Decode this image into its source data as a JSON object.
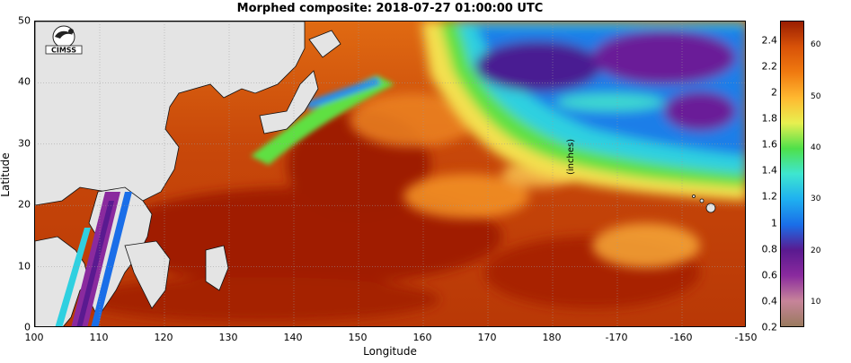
{
  "title": "Morphed composite: 2018-07-27 01:00:00 UTC",
  "x_axis": {
    "label": "Longitude",
    "ticks": [
      "100",
      "110",
      "120",
      "130",
      "140",
      "150",
      "160",
      "170",
      "180",
      "-170",
      "-160",
      "-150"
    ]
  },
  "y_axis": {
    "label": "Latitude",
    "ticks": [
      "0",
      "10",
      "20",
      "30",
      "40",
      "50"
    ]
  },
  "colorbar": {
    "unit_label": "(inches)",
    "left_ticks": [
      "0.2",
      "0.4",
      "0.6",
      "0.8",
      "1",
      "1.2",
      "1.4",
      "1.6",
      "1.8",
      "2",
      "2.2",
      "2.4"
    ],
    "right_ticks": [
      "10",
      "20",
      "30",
      "40",
      "50",
      "60"
    ]
  },
  "logo": {
    "text": "CIMSS",
    "icon": "cimss-logo-icon"
  },
  "map": {
    "type": "total precipitable water composite",
    "lon_range": [
      100,
      -150
    ],
    "lat_range": [
      0,
      50
    ],
    "land_color": "#e4e4e4",
    "palette": [
      "#9a7a5e",
      "#c7849a",
      "#8a2a9e",
      "#5a1a90",
      "#1a6ee8",
      "#1fb0f0",
      "#3ee6d0",
      "#4fe04a",
      "#e8f050",
      "#ffb830",
      "#f07a10",
      "#d85208",
      "#9a1e02"
    ]
  }
}
